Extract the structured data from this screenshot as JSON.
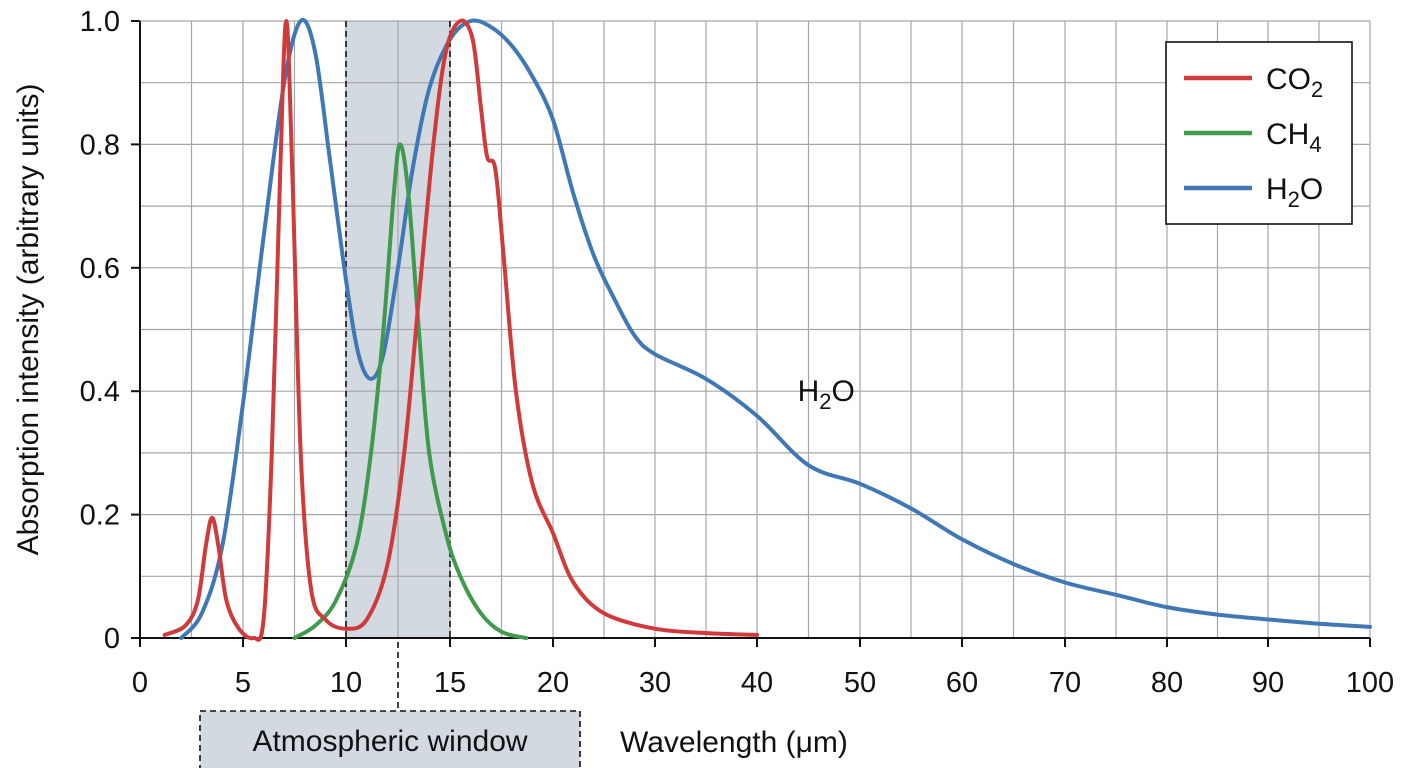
{
  "colors": {
    "co2": "#d03a3a",
    "ch4": "#3f9a4e",
    "h2o": "#3f78b4",
    "window_fill": "#d2d9e0",
    "grid": "#a6a6a6",
    "axis": "#111111"
  },
  "chart_data": {
    "type": "line",
    "xlabel": "Wavelength (μm)",
    "ylabel": "Absorption intensity (arbitrary units)",
    "ylim": [
      0,
      1.0
    ],
    "x_scale": "piecewise: 0-20 expanded, 20-100 compressed",
    "x_ticks": [
      "0",
      "5",
      "10",
      "15",
      "20",
      "30",
      "40",
      "50",
      "60",
      "70",
      "80",
      "90",
      "100"
    ],
    "y_ticks": [
      "0",
      "0.2",
      "0.4",
      "0.6",
      "0.8",
      "1.0"
    ],
    "grid": true,
    "legend_position": "top-right",
    "legend": [
      {
        "key": "co2",
        "base": "CO",
        "sub": "2"
      },
      {
        "key": "ch4",
        "base": "CH",
        "sub": "4"
      },
      {
        "key": "h2o",
        "base": "H",
        "sub": "2",
        "tail": "O"
      }
    ],
    "annotation": {
      "base": "H",
      "sub": "2",
      "tail": "O",
      "x": 42,
      "y": 0.4
    },
    "atmospheric_window": {
      "label": "Atmospheric window",
      "x_start": 10,
      "x_end": 15
    },
    "series": [
      {
        "key": "co2",
        "color": "#d03a3a",
        "points": [
          [
            1.2,
            0.005
          ],
          [
            2.2,
            0.02
          ],
          [
            2.8,
            0.06
          ],
          [
            3.2,
            0.15
          ],
          [
            3.5,
            0.195
          ],
          [
            3.8,
            0.15
          ],
          [
            4.2,
            0.06
          ],
          [
            4.8,
            0.015
          ],
          [
            5.5,
            0.0
          ],
          [
            6.0,
            0.03
          ],
          [
            6.4,
            0.3
          ],
          [
            6.8,
            0.75
          ],
          [
            7.1,
            1.0
          ],
          [
            7.4,
            0.75
          ],
          [
            7.8,
            0.3
          ],
          [
            8.3,
            0.08
          ],
          [
            9.0,
            0.03
          ],
          [
            10.0,
            0.015
          ],
          [
            11.0,
            0.03
          ],
          [
            12.0,
            0.12
          ],
          [
            12.8,
            0.3
          ],
          [
            13.5,
            0.55
          ],
          [
            14.2,
            0.8
          ],
          [
            14.8,
            0.95
          ],
          [
            15.5,
            1.0
          ],
          [
            16.1,
            0.97
          ],
          [
            16.5,
            0.86
          ],
          [
            16.8,
            0.78
          ],
          [
            17.2,
            0.76
          ],
          [
            17.6,
            0.62
          ],
          [
            18.2,
            0.4
          ],
          [
            19.0,
            0.25
          ],
          [
            20.0,
            0.17
          ],
          [
            22.0,
            0.09
          ],
          [
            25.0,
            0.04
          ],
          [
            30.0,
            0.015
          ],
          [
            35.0,
            0.008
          ],
          [
            40.0,
            0.005
          ]
        ]
      },
      {
        "key": "ch4",
        "color": "#3f9a4e",
        "points": [
          [
            7.5,
            0.0
          ],
          [
            8.5,
            0.02
          ],
          [
            9.5,
            0.06
          ],
          [
            10.5,
            0.15
          ],
          [
            11.2,
            0.3
          ],
          [
            11.8,
            0.5
          ],
          [
            12.3,
            0.72
          ],
          [
            12.6,
            0.8
          ],
          [
            13.0,
            0.72
          ],
          [
            13.5,
            0.5
          ],
          [
            14.0,
            0.3
          ],
          [
            14.8,
            0.17
          ],
          [
            15.5,
            0.1
          ],
          [
            16.5,
            0.04
          ],
          [
            17.5,
            0.01
          ],
          [
            18.7,
            0.0
          ]
        ]
      },
      {
        "key": "h2o",
        "color": "#3f78b4",
        "points": [
          [
            2.0,
            0.0
          ],
          [
            3.0,
            0.04
          ],
          [
            4.0,
            0.15
          ],
          [
            5.0,
            0.38
          ],
          [
            6.0,
            0.65
          ],
          [
            7.0,
            0.9
          ],
          [
            7.8,
            1.0
          ],
          [
            8.5,
            0.95
          ],
          [
            9.2,
            0.78
          ],
          [
            10.0,
            0.58
          ],
          [
            10.6,
            0.46
          ],
          [
            11.2,
            0.42
          ],
          [
            11.8,
            0.46
          ],
          [
            12.5,
            0.6
          ],
          [
            13.2,
            0.76
          ],
          [
            14.0,
            0.89
          ],
          [
            15.0,
            0.97
          ],
          [
            16.0,
            1.0
          ],
          [
            17.0,
            0.99
          ],
          [
            18.0,
            0.96
          ],
          [
            19.0,
            0.91
          ],
          [
            20.0,
            0.84
          ],
          [
            22.0,
            0.72
          ],
          [
            24.0,
            0.62
          ],
          [
            26.0,
            0.55
          ],
          [
            28.0,
            0.49
          ],
          [
            30.0,
            0.46
          ],
          [
            35.0,
            0.42
          ],
          [
            40.0,
            0.36
          ],
          [
            45.0,
            0.28
          ],
          [
            50.0,
            0.25
          ],
          [
            55.0,
            0.21
          ],
          [
            60.0,
            0.16
          ],
          [
            65.0,
            0.12
          ],
          [
            70.0,
            0.09
          ],
          [
            75.0,
            0.07
          ],
          [
            80.0,
            0.05
          ],
          [
            85.0,
            0.038
          ],
          [
            90.0,
            0.03
          ],
          [
            95.0,
            0.023
          ],
          [
            100.0,
            0.018
          ]
        ]
      }
    ]
  }
}
